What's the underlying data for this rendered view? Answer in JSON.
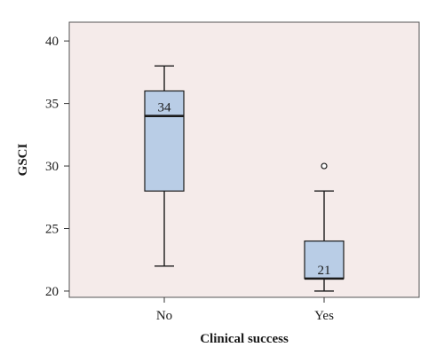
{
  "chart_data": {
    "type": "boxplot",
    "xlabel": "Clinical success",
    "ylabel": "GSCI",
    "ylim": [
      19.5,
      41.5
    ],
    "yticks": [
      20,
      25,
      30,
      35,
      40
    ],
    "grid": false,
    "legend": "none",
    "colors": {
      "plot_background": "#f5ebea",
      "box_fill": "#b9cde6",
      "stroke": "#1a1a1a"
    },
    "categories": [
      "No",
      "Yes"
    ],
    "boxes": [
      {
        "category": "No",
        "whisker_low": 22,
        "q1": 28,
        "median": 34,
        "q3": 36,
        "whisker_high": 38,
        "outliers": [],
        "label": "34"
      },
      {
        "category": "Yes",
        "whisker_low": 20,
        "q1": 21,
        "median": 21,
        "q3": 24,
        "whisker_high": 28,
        "outliers": [
          30
        ],
        "label": "21"
      }
    ]
  }
}
